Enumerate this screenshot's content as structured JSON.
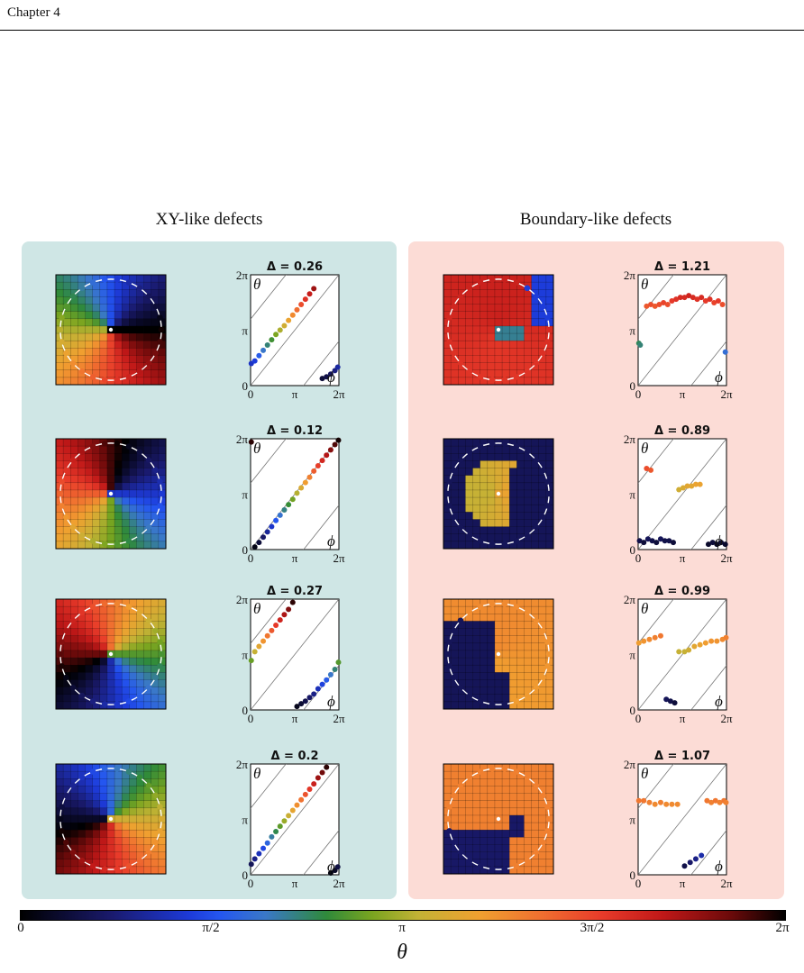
{
  "running_head": "Chapter 4",
  "groups": {
    "left_title": "XY-like defects",
    "right_title": "Boundary-like defects"
  },
  "plots": {
    "tick_y": [
      "0",
      "π",
      "2π"
    ],
    "tick_x": [
      "0",
      "π",
      "2π"
    ],
    "y_var": "θ",
    "x_var": "ϕ"
  },
  "chart_data": [
    {
      "type": "scatter",
      "title": "Δ = 0.26",
      "group": "XY-like defects",
      "xlim": [
        0,
        6.283
      ],
      "ylim": [
        0,
        6.283
      ],
      "series": [
        {
          "x": [
            0.05,
            0.3,
            0.6,
            0.9,
            1.2,
            1.5,
            1.8,
            2.1,
            2.4,
            2.7,
            3.0,
            3.3,
            3.6,
            3.9,
            4.2,
            4.5,
            5.1,
            5.4,
            5.7,
            6.0,
            6.2
          ],
          "y": [
            1.25,
            1.4,
            1.7,
            2.0,
            2.3,
            2.6,
            2.9,
            3.15,
            3.4,
            3.7,
            4.0,
            4.3,
            4.6,
            4.9,
            5.2,
            5.5,
            0.4,
            0.5,
            0.65,
            0.85,
            1.05
          ]
        }
      ]
    },
    {
      "type": "scatter",
      "title": "Δ = 0.12",
      "group": "XY-like defects",
      "xlim": [
        0,
        6.283
      ],
      "ylim": [
        0,
        6.283
      ],
      "series": [
        {
          "x": [
            0.05,
            0.3,
            0.6,
            0.9,
            1.2,
            1.5,
            1.8,
            2.1,
            2.4,
            2.7,
            3.0,
            3.3,
            3.6,
            3.9,
            4.2,
            4.5,
            4.8,
            5.1,
            5.4,
            5.7,
            6.0,
            6.25
          ],
          "y": [
            6.1,
            0.15,
            0.4,
            0.7,
            1.0,
            1.3,
            1.65,
            1.95,
            2.25,
            2.55,
            2.85,
            3.2,
            3.5,
            3.8,
            4.1,
            4.45,
            4.75,
            5.05,
            5.35,
            5.65,
            5.95,
            6.2
          ]
        }
      ]
    },
    {
      "type": "scatter",
      "title": "Δ = 0.27",
      "group": "XY-like defects",
      "xlim": [
        0,
        6.283
      ],
      "ylim": [
        0,
        6.283
      ],
      "series": [
        {
          "x": [
            0.05,
            0.3,
            0.6,
            0.9,
            1.2,
            1.5,
            1.8,
            2.1,
            2.4,
            2.7,
            3.0,
            3.3,
            3.6,
            3.9,
            4.2,
            4.5,
            4.8,
            5.1,
            5.4,
            5.7,
            6.0,
            6.25
          ],
          "y": [
            2.8,
            3.3,
            3.6,
            3.9,
            4.2,
            4.5,
            4.8,
            5.1,
            5.4,
            5.7,
            6.1,
            0.2,
            0.35,
            0.5,
            0.7,
            0.9,
            1.2,
            1.45,
            1.7,
            2.0,
            2.3,
            2.7
          ]
        }
      ]
    },
    {
      "type": "scatter",
      "title": "Δ = 0.2",
      "group": "XY-like defects",
      "xlim": [
        0,
        6.283
      ],
      "ylim": [
        0,
        6.283
      ],
      "series": [
        {
          "x": [
            0.05,
            0.3,
            0.6,
            0.9,
            1.2,
            1.5,
            1.8,
            2.1,
            2.4,
            2.7,
            3.0,
            3.3,
            3.6,
            3.9,
            4.2,
            4.5,
            4.8,
            5.1,
            5.4,
            5.7,
            6.0,
            6.2
          ],
          "y": [
            0.6,
            0.9,
            1.2,
            1.5,
            1.8,
            2.15,
            2.45,
            2.75,
            3.05,
            3.35,
            3.65,
            3.95,
            4.25,
            4.55,
            4.85,
            5.15,
            5.5,
            5.8,
            6.1,
            0.1,
            0.25,
            0.45
          ]
        }
      ]
    },
    {
      "type": "scatter",
      "title": "Δ = 1.21",
      "group": "Boundary-like defects",
      "xlim": [
        0,
        6.283
      ],
      "ylim": [
        0,
        6.283
      ],
      "series": [
        {
          "x": [
            0.05,
            0.15,
            0.6,
            0.9,
            1.2,
            1.5,
            1.8,
            2.1,
            2.4,
            2.7,
            3.0,
            3.3,
            3.6,
            3.9,
            4.2,
            4.5,
            4.8,
            5.1,
            5.4,
            5.7,
            6.0,
            6.2
          ],
          "y": [
            2.4,
            2.3,
            4.5,
            4.6,
            4.5,
            4.6,
            4.7,
            4.6,
            4.8,
            4.9,
            5.0,
            5.0,
            5.1,
            5.0,
            4.9,
            5.0,
            4.8,
            4.9,
            4.7,
            4.8,
            4.6,
            1.9
          ]
        }
      ]
    },
    {
      "type": "scatter",
      "title": "Δ = 0.89",
      "group": "Boundary-like defects",
      "xlim": [
        0,
        6.283
      ],
      "ylim": [
        0,
        6.283
      ],
      "series": [
        {
          "x": [
            0.1,
            0.4,
            0.7,
            1.0,
            1.3,
            1.6,
            1.9,
            2.2,
            2.5,
            2.9,
            3.2,
            3.5,
            3.8,
            4.1,
            4.4,
            5.0,
            5.3,
            5.6,
            5.9,
            6.2,
            0.6,
            0.9
          ],
          "y": [
            0.5,
            0.4,
            0.6,
            0.5,
            0.4,
            0.6,
            0.5,
            0.5,
            0.4,
            3.4,
            3.5,
            3.6,
            3.6,
            3.7,
            3.7,
            0.3,
            0.4,
            0.3,
            0.4,
            0.3,
            4.6,
            4.5
          ]
        }
      ]
    },
    {
      "type": "scatter",
      "title": "Δ = 0.99",
      "group": "Boundary-like defects",
      "xlim": [
        0,
        6.283
      ],
      "ylim": [
        0,
        6.283
      ],
      "series": [
        {
          "x": [
            0.05,
            0.4,
            0.8,
            1.2,
            1.6,
            2.0,
            2.3,
            2.6,
            2.9,
            3.3,
            3.6,
            4.0,
            4.4,
            4.8,
            5.2,
            5.6,
            6.0,
            6.25
          ],
          "y": [
            3.8,
            3.9,
            4.0,
            4.1,
            4.2,
            0.6,
            0.5,
            0.4,
            3.3,
            3.3,
            3.4,
            3.6,
            3.7,
            3.8,
            3.9,
            3.9,
            4.0,
            4.1
          ]
        }
      ]
    },
    {
      "type": "scatter",
      "title": "Δ = 1.07",
      "group": "Boundary-like defects",
      "xlim": [
        0,
        6.283
      ],
      "ylim": [
        0,
        6.283
      ],
      "series": [
        {
          "x": [
            0.05,
            0.4,
            0.8,
            1.2,
            1.6,
            2.0,
            2.4,
            2.8,
            3.3,
            3.7,
            4.1,
            4.5,
            4.9,
            5.2,
            5.5,
            5.8,
            6.1,
            6.25
          ],
          "y": [
            4.2,
            4.2,
            4.1,
            4.0,
            4.1,
            4.0,
            4.0,
            4.0,
            0.5,
            0.7,
            0.9,
            1.1,
            4.2,
            4.1,
            4.2,
            4.1,
            4.2,
            4.1
          ]
        }
      ]
    }
  ],
  "colorbar": {
    "tick_labels": [
      "0",
      "π/2",
      "π",
      "3π/2",
      "2π"
    ],
    "axis_label": "θ"
  }
}
